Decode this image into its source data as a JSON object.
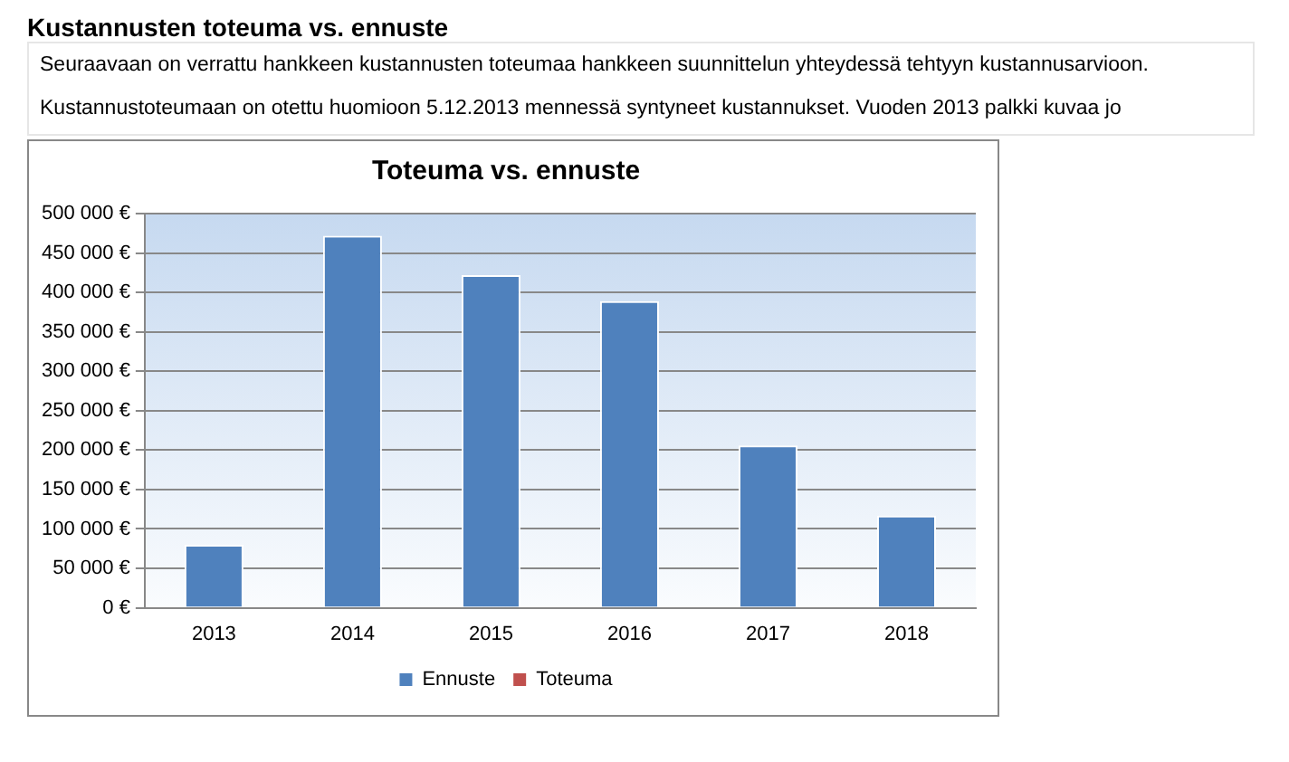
{
  "chart_data": {
    "type": "bar",
    "title": "Toteuma vs. ennuste",
    "annotations": [
      "Kustannusten toteuma vs. ennuste",
      "Seuraavaan on verrattu hankkeen kustannusten toteumaa hankkeen suunnittelun yhteydessä tehtyyn kustannusarvioon.",
      "Kustannustoteumaan on otettu huomioon 5.12.2013 mennessä syntyneet kustannukset. Vuoden 2013 palkki kuvaa jo"
    ],
    "categories": [
      "2013",
      "2014",
      "2015",
      "2016",
      "2017",
      "2018"
    ],
    "series": [
      {
        "name": "Ennuste",
        "color": "#4f81bd",
        "values": [
          80000,
          472000,
          422000,
          389000,
          206000,
          117000
        ]
      },
      {
        "name": "Toteuma",
        "color": "#c0504d",
        "values": [
          null,
          null,
          null,
          null,
          null,
          null
        ]
      }
    ],
    "ylim": [
      0,
      500000
    ],
    "yticks": [
      {
        "value": 0,
        "label": "0 €"
      },
      {
        "value": 50000,
        "label": "50 000 €"
      },
      {
        "value": 100000,
        "label": "100 000 €"
      },
      {
        "value": 150000,
        "label": "150 000 €"
      },
      {
        "value": 200000,
        "label": "200 000 €"
      },
      {
        "value": 250000,
        "label": "250 000 €"
      },
      {
        "value": 300000,
        "label": "300 000 €"
      },
      {
        "value": 350000,
        "label": "350 000 €"
      },
      {
        "value": 400000,
        "label": "400 000 €"
      },
      {
        "value": 450000,
        "label": "450 000 €"
      },
      {
        "value": 500000,
        "label": "500 000 €"
      }
    ],
    "grid": "y",
    "legend": "bottom"
  }
}
